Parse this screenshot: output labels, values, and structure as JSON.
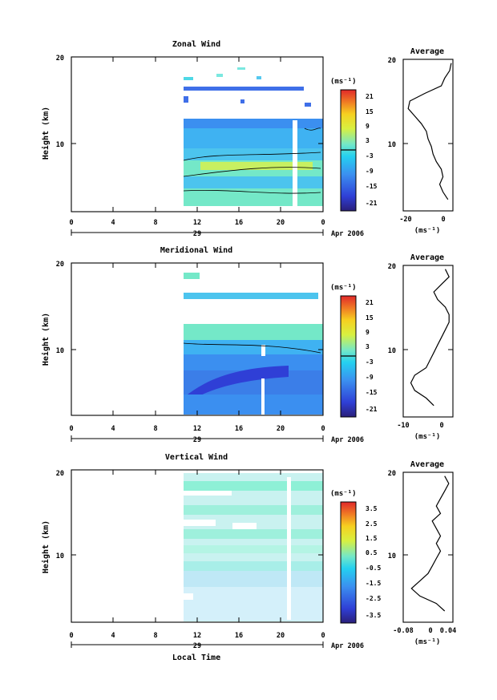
{
  "chart_data": [
    {
      "type": "heatmap",
      "title": "Zonal Wind",
      "ylabel": "Height (km)",
      "yticks": [
        "20",
        "10"
      ],
      "xticks": [
        "0",
        "4",
        "8",
        "12",
        "16",
        "20",
        "0"
      ],
      "date_labels": [
        "29",
        "Apr 2006"
      ],
      "colorbar": {
        "unit": "(ms⁻¹)",
        "ticks": [
          "21",
          "15",
          "9",
          "3",
          "-3",
          "-9",
          "-15",
          "-21"
        ]
      },
      "ylim": [
        0,
        20
      ],
      "xlim": [
        0,
        24
      ],
      "data_start_hour": 10.7,
      "profile": {
        "title": "Average",
        "xticks": [
          "-20",
          "0"
        ],
        "yticks": [
          "20",
          "10"
        ],
        "xlim": [
          -25,
          5
        ],
        "xunit": "(ms⁻¹)",
        "heights": [
          1.5,
          2.5,
          3.5,
          4.5,
          5.5,
          6.5,
          7.5,
          8.5,
          9.5,
          10.5,
          11.5,
          12.5,
          13.5,
          14.5,
          15.5,
          16.5,
          17.5,
          18.5,
          19.5
        ],
        "values": [
          2,
          -1,
          -3,
          -1,
          -2,
          -5,
          -7,
          -8,
          -10,
          -11,
          -14,
          -18,
          -22,
          -21,
          -12,
          -2,
          0,
          3,
          4
        ]
      }
    },
    {
      "type": "heatmap",
      "title": "Meridional Wind",
      "ylabel": "Height (km)",
      "yticks": [
        "20",
        "10"
      ],
      "xticks": [
        "0",
        "4",
        "8",
        "12",
        "16",
        "20",
        "0"
      ],
      "date_labels": [
        "29",
        "Apr 2006"
      ],
      "colorbar": {
        "unit": "(ms⁻¹)",
        "ticks": [
          "21",
          "15",
          "9",
          "3",
          "-3",
          "-9",
          "-15",
          "-21"
        ]
      },
      "ylim": [
        0,
        20
      ],
      "xlim": [
        0,
        24
      ],
      "data_start_hour": 10.7,
      "profile": {
        "title": "Average",
        "xticks": [
          "-10",
          "0"
        ],
        "yticks": [
          "20",
          "10"
        ],
        "xlim": [
          -10,
          3
        ],
        "xunit": "(ms⁻¹)",
        "heights": [
          1.5,
          2.5,
          3.5,
          4.5,
          5.5,
          6.5,
          7.5,
          8.5,
          9.5,
          10.5,
          11.5,
          12.5,
          13.5,
          14.5,
          15.5,
          16.5,
          17.5,
          18.5,
          19.5
        ],
        "values": [
          -2,
          -4,
          -7,
          -8,
          -7,
          -4,
          -3,
          -2,
          -1,
          0,
          1,
          2,
          2,
          1,
          -1,
          -2,
          0,
          2,
          1
        ]
      }
    },
    {
      "type": "heatmap",
      "title": "Vertical Wind",
      "ylabel": "Height (km)",
      "yticks": [
        "20",
        "10"
      ],
      "xticks": [
        "0",
        "4",
        "8",
        "12",
        "16",
        "20",
        "0"
      ],
      "date_labels": [
        "29",
        "Apr 2006"
      ],
      "xlabel": "Local Time",
      "colorbar": {
        "unit": "(ms⁻¹)",
        "ticks": [
          "3.5",
          "2.5",
          "1.5",
          "0.5",
          "-0.5",
          "-1.5",
          "-2.5",
          "-3.5"
        ]
      },
      "ylim": [
        0,
        20
      ],
      "xlim": [
        0,
        24
      ],
      "data_start_hour": 10.7,
      "profile": {
        "title": "Average",
        "xticks": [
          "-0.08",
          "0",
          "0.04"
        ],
        "yticks": [
          "20",
          "10"
        ],
        "xlim": [
          -0.08,
          0.04
        ],
        "xunit": "(ms⁻¹)",
        "heights": [
          1.5,
          2.5,
          3.5,
          4.5,
          5.5,
          6.5,
          7.5,
          8.5,
          9.5,
          10.5,
          11.5,
          12.5,
          13.5,
          14.5,
          15.5,
          16.5,
          17.5,
          18.5,
          19.5
        ],
        "values": [
          0.02,
          0.0,
          -0.04,
          -0.06,
          -0.04,
          -0.02,
          -0.01,
          0.0,
          0.01,
          0.0,
          0.01,
          0.0,
          -0.01,
          0.01,
          0.0,
          0.01,
          0.02,
          0.03,
          0.02
        ]
      }
    }
  ]
}
